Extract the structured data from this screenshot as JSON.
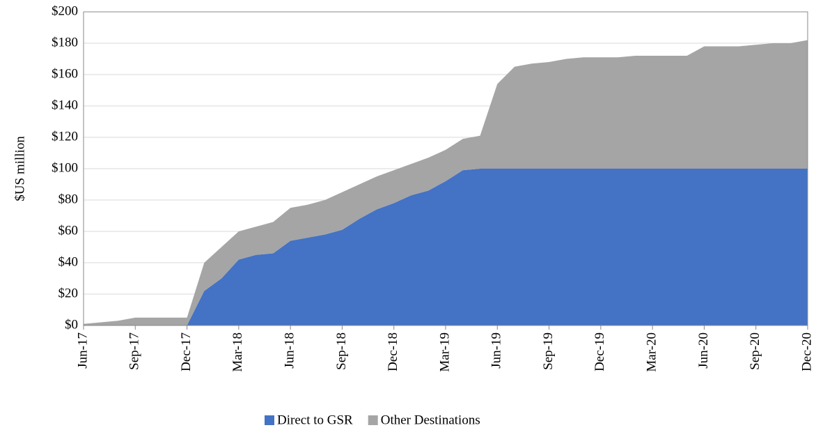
{
  "chart_data": {
    "type": "stacked_area",
    "y_label": "$US million",
    "categories": [
      "Jun-17",
      null,
      null,
      "Sep-17",
      null,
      null,
      "Dec-17",
      null,
      null,
      "Mar-18",
      null,
      null,
      "Jun-18",
      null,
      null,
      "Sep-18",
      null,
      null,
      "Dec-18",
      null,
      null,
      "Mar-19",
      null,
      null,
      "Jun-19",
      null,
      null,
      "Sep-19",
      null,
      null,
      "Dec-19",
      null,
      null,
      "Mar-20",
      null,
      null,
      "Jun-20",
      null,
      null,
      "Sep-20",
      null,
      null,
      "Dec-20"
    ],
    "series": [
      {
        "name": "Direct to GSR",
        "color": "#4472c4",
        "values": [
          0,
          0,
          0,
          0,
          0,
          0,
          0,
          22,
          30,
          42,
          45,
          46,
          54,
          56,
          58,
          61,
          68,
          74,
          78,
          83,
          86,
          92,
          99,
          100,
          100,
          100,
          100,
          100,
          100,
          100,
          100,
          100,
          100,
          100,
          100,
          100,
          100,
          100,
          100,
          100,
          100,
          100,
          100
        ]
      },
      {
        "name": "Other Destinations",
        "color": "#a5a5a5",
        "values": [
          1,
          2,
          3,
          5,
          5,
          5,
          5,
          18,
          20,
          18,
          18,
          20,
          21,
          21,
          22,
          24,
          22,
          21,
          21,
          20,
          21,
          20,
          20,
          21,
          54,
          65,
          67,
          68,
          70,
          71,
          71,
          71,
          72,
          72,
          72,
          72,
          78,
          78,
          78,
          79,
          80,
          80,
          82
        ]
      }
    ],
    "ylim": [
      0,
      200
    ],
    "yticks": [
      {
        "value": 0,
        "label": "$0"
      },
      {
        "value": 20,
        "label": "$20"
      },
      {
        "value": 40,
        "label": "$40"
      },
      {
        "value": 60,
        "label": "$60"
      },
      {
        "value": 80,
        "label": "$80"
      },
      {
        "value": 100,
        "label": "$100"
      },
      {
        "value": 120,
        "label": "$120"
      },
      {
        "value": 140,
        "label": "$140"
      },
      {
        "value": 160,
        "label": "$160"
      },
      {
        "value": 180,
        "label": "$180"
      },
      {
        "value": 200,
        "label": "$200"
      }
    ],
    "grid": true,
    "legend": "bottom"
  }
}
